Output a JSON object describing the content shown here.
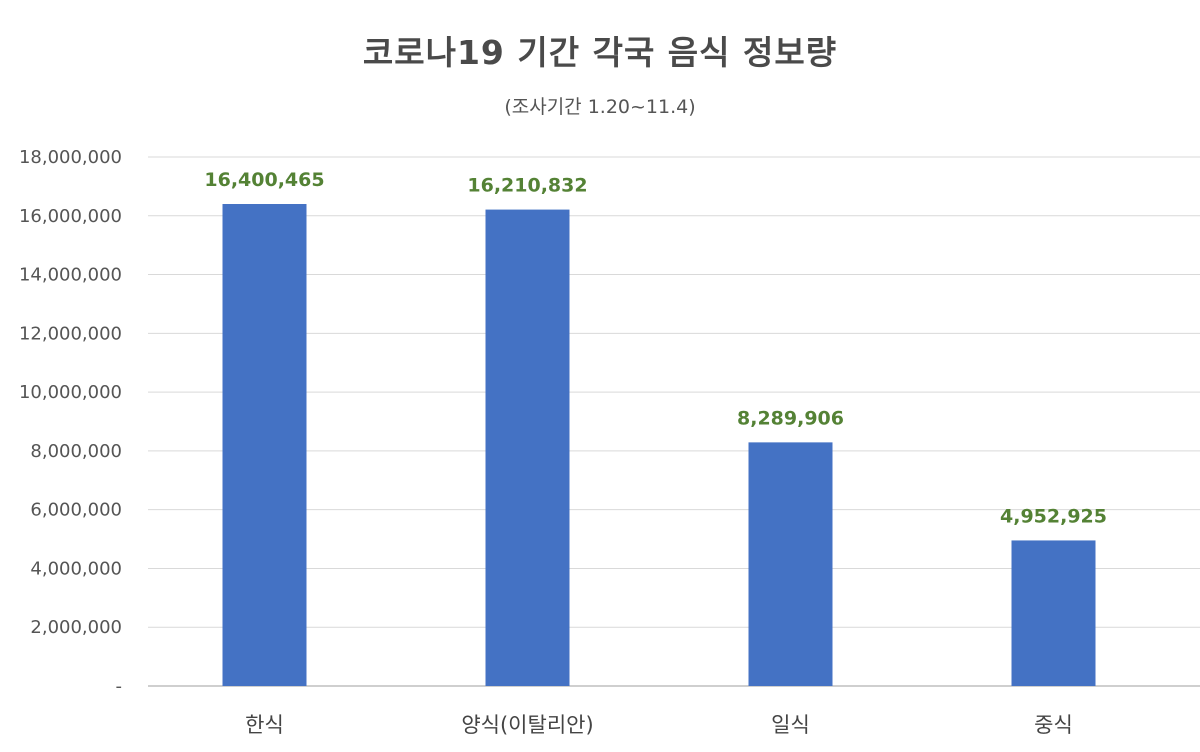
{
  "chart_data": {
    "type": "bar",
    "title": "코로나19 기간 각국 음식 정보량",
    "subtitle": "(조사기간 1.20~11.4)",
    "xlabel": "",
    "ylabel": "",
    "categories": [
      "한식",
      "양식(이탈리안)",
      "일식",
      "중식"
    ],
    "values": [
      16400465,
      16210832,
      8289906,
      4952925
    ],
    "data_labels": [
      "16,400,465",
      "16,210,832",
      "8,289,906",
      "4,952,925"
    ],
    "ylim": [
      0,
      18000000
    ],
    "y_ticks": [
      0,
      2000000,
      4000000,
      6000000,
      8000000,
      10000000,
      12000000,
      14000000,
      16000000,
      18000000
    ],
    "y_tick_labels": [
      "-",
      "2,000,000",
      "4,000,000",
      "6,000,000",
      "8,000,000",
      "10,000,000",
      "12,000,000",
      "14,000,000",
      "16,000,000",
      "18,000,000"
    ],
    "grid": true,
    "legend": "none",
    "colors": {
      "bar": "#4472C4",
      "data_label": "#548235",
      "grid": "#d9d9d9",
      "axis": "#bfbfbf"
    }
  }
}
